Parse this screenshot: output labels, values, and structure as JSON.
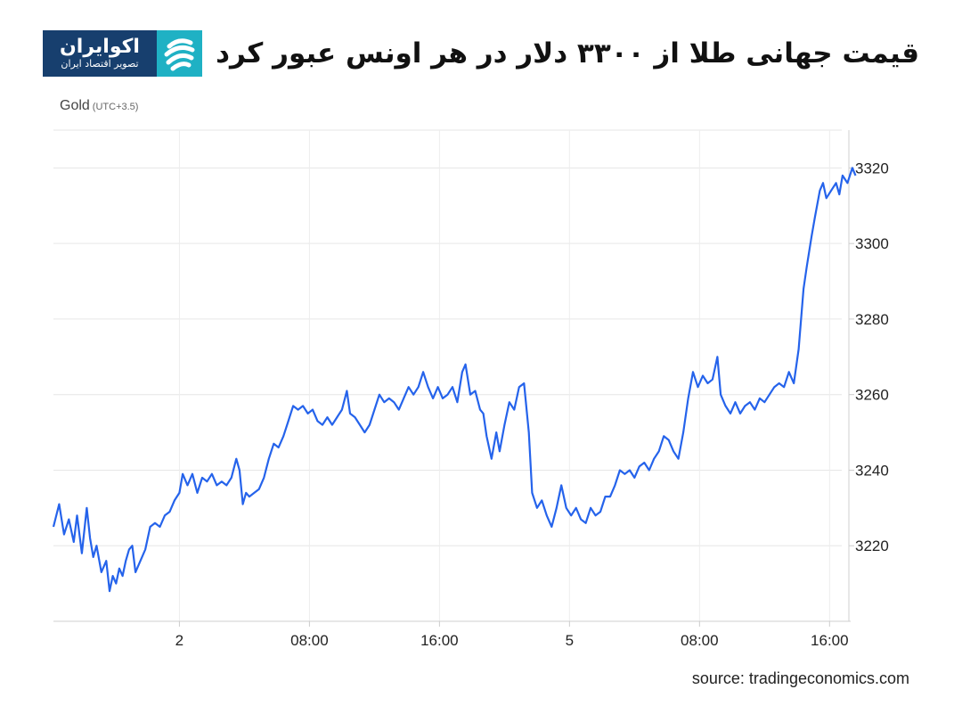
{
  "header": {
    "headline": "قیمت جهانی طلا از ۳۳۰۰ دلار در هر اونس عبور کرد",
    "logo": {
      "main": "اکوایران",
      "sub": "تصویر اقتصاد ایران",
      "colors": {
        "dark": "#173f6e",
        "accent": "#1fb1c4"
      }
    }
  },
  "source_text": "source: tradingeconomics.com",
  "chart_data": {
    "type": "line",
    "series_label": "Gold",
    "timezone_label": "(UTC+3.5)",
    "x_ticks": [
      "2",
      "08:00",
      "16:00",
      "5",
      "08:00",
      "16:00"
    ],
    "x_tick_hours": [
      4.5,
      12.5,
      20.5,
      28.5,
      36.5,
      44.5
    ],
    "x_range_hours": [
      -3.25,
      45.25
    ],
    "ylim": [
      3200,
      3330
    ],
    "y_ticks": [
      3220,
      3240,
      3260,
      3280,
      3300,
      3320
    ],
    "grid": true,
    "line_color": "#2563eb",
    "series": [
      {
        "points": [
          [
            -3.25,
            3225
          ],
          [
            -2.9,
            3231
          ],
          [
            -2.6,
            3223
          ],
          [
            -2.3,
            3227
          ],
          [
            -2.0,
            3221
          ],
          [
            -1.8,
            3228
          ],
          [
            -1.5,
            3218
          ],
          [
            -1.2,
            3230
          ],
          [
            -1.0,
            3222
          ],
          [
            -0.8,
            3217
          ],
          [
            -0.6,
            3220
          ],
          [
            -0.3,
            3213
          ],
          [
            0.0,
            3216
          ],
          [
            0.2,
            3208
          ],
          [
            0.4,
            3212
          ],
          [
            0.6,
            3210
          ],
          [
            0.8,
            3214
          ],
          [
            1.0,
            3212
          ],
          [
            1.2,
            3216
          ],
          [
            1.4,
            3219
          ],
          [
            1.6,
            3220
          ],
          [
            1.8,
            3213
          ],
          [
            2.1,
            3216
          ],
          [
            2.4,
            3219
          ],
          [
            2.7,
            3225
          ],
          [
            3.0,
            3226
          ],
          [
            3.3,
            3225
          ],
          [
            3.6,
            3228
          ],
          [
            3.9,
            3229
          ],
          [
            4.2,
            3232
          ],
          [
            4.5,
            3234
          ],
          [
            4.7,
            3239
          ],
          [
            5.0,
            3236
          ],
          [
            5.3,
            3239
          ],
          [
            5.6,
            3234
          ],
          [
            5.9,
            3238
          ],
          [
            6.2,
            3237
          ],
          [
            6.5,
            3239
          ],
          [
            6.8,
            3236
          ],
          [
            7.1,
            3237
          ],
          [
            7.4,
            3236
          ],
          [
            7.7,
            3238
          ],
          [
            8.0,
            3243
          ],
          [
            8.2,
            3240
          ],
          [
            8.4,
            3231
          ],
          [
            8.6,
            3234
          ],
          [
            8.8,
            3233
          ],
          [
            9.1,
            3234
          ],
          [
            9.4,
            3235
          ],
          [
            9.7,
            3238
          ],
          [
            10.0,
            3243
          ],
          [
            10.3,
            3247
          ],
          [
            10.6,
            3246
          ],
          [
            10.9,
            3249
          ],
          [
            11.2,
            3253
          ],
          [
            11.5,
            3257
          ],
          [
            11.8,
            3256
          ],
          [
            12.1,
            3257
          ],
          [
            12.4,
            3255
          ],
          [
            12.7,
            3256
          ],
          [
            13.0,
            3253
          ],
          [
            13.3,
            3252
          ],
          [
            13.6,
            3254
          ],
          [
            13.9,
            3252
          ],
          [
            14.2,
            3254
          ],
          [
            14.5,
            3256
          ],
          [
            14.8,
            3261
          ],
          [
            15.0,
            3255
          ],
          [
            15.3,
            3254
          ],
          [
            15.6,
            3252
          ],
          [
            15.9,
            3250
          ],
          [
            16.2,
            3252
          ],
          [
            16.5,
            3256
          ],
          [
            16.8,
            3260
          ],
          [
            17.1,
            3258
          ],
          [
            17.4,
            3259
          ],
          [
            17.7,
            3258
          ],
          [
            18.0,
            3256
          ],
          [
            18.3,
            3259
          ],
          [
            18.6,
            3262
          ],
          [
            18.9,
            3260
          ],
          [
            19.2,
            3262
          ],
          [
            19.5,
            3266
          ],
          [
            19.8,
            3262
          ],
          [
            20.1,
            3259
          ],
          [
            20.4,
            3262
          ],
          [
            20.7,
            3259
          ],
          [
            21.0,
            3260
          ],
          [
            21.3,
            3262
          ],
          [
            21.6,
            3258
          ],
          [
            21.9,
            3266
          ],
          [
            22.1,
            3268
          ],
          [
            22.4,
            3260
          ],
          [
            22.7,
            3261
          ],
          [
            23.0,
            3256
          ],
          [
            23.2,
            3255
          ],
          [
            23.4,
            3249
          ],
          [
            23.7,
            3243
          ],
          [
            24.0,
            3250
          ],
          [
            24.2,
            3245
          ],
          [
            24.5,
            3252
          ],
          [
            24.8,
            3258
          ],
          [
            25.1,
            3256
          ],
          [
            25.4,
            3262
          ],
          [
            25.7,
            3263
          ],
          [
            26.0,
            3250
          ],
          [
            26.2,
            3234
          ],
          [
            26.5,
            3230
          ],
          [
            26.8,
            3232
          ],
          [
            27.1,
            3228
          ],
          [
            27.4,
            3225
          ],
          [
            27.7,
            3230
          ],
          [
            28.0,
            3236
          ],
          [
            28.3,
            3230
          ],
          [
            28.6,
            3228
          ],
          [
            28.9,
            3230
          ],
          [
            29.2,
            3227
          ],
          [
            29.5,
            3226
          ],
          [
            29.8,
            3230
          ],
          [
            30.1,
            3228
          ],
          [
            30.4,
            3229
          ],
          [
            30.7,
            3233
          ],
          [
            31.0,
            3233
          ],
          [
            31.3,
            3236
          ],
          [
            31.6,
            3240
          ],
          [
            31.9,
            3239
          ],
          [
            32.2,
            3240
          ],
          [
            32.5,
            3238
          ],
          [
            32.8,
            3241
          ],
          [
            33.1,
            3242
          ],
          [
            33.4,
            3240
          ],
          [
            33.7,
            3243
          ],
          [
            34.0,
            3245
          ],
          [
            34.3,
            3249
          ],
          [
            34.6,
            3248
          ],
          [
            34.9,
            3245
          ],
          [
            35.2,
            3243
          ],
          [
            35.5,
            3250
          ],
          [
            35.8,
            3259
          ],
          [
            36.1,
            3266
          ],
          [
            36.4,
            3262
          ],
          [
            36.7,
            3265
          ],
          [
            37.0,
            3263
          ],
          [
            37.3,
            3264
          ],
          [
            37.6,
            3270
          ],
          [
            37.8,
            3260
          ],
          [
            38.1,
            3257
          ],
          [
            38.4,
            3255
          ],
          [
            38.7,
            3258
          ],
          [
            39.0,
            3255
          ],
          [
            39.3,
            3257
          ],
          [
            39.6,
            3258
          ],
          [
            39.9,
            3256
          ],
          [
            40.2,
            3259
          ],
          [
            40.5,
            3258
          ],
          [
            40.8,
            3260
          ],
          [
            41.1,
            3262
          ],
          [
            41.4,
            3263
          ],
          [
            41.7,
            3262
          ],
          [
            42.0,
            3266
          ],
          [
            42.3,
            3263
          ],
          [
            42.6,
            3272
          ],
          [
            42.9,
            3288
          ],
          [
            43.1,
            3294
          ],
          [
            43.4,
            3302
          ],
          [
            43.6,
            3307
          ],
          [
            43.9,
            3314
          ],
          [
            44.1,
            3316
          ],
          [
            44.3,
            3312
          ],
          [
            44.6,
            3314
          ],
          [
            44.9,
            3316
          ],
          [
            45.1,
            3313
          ],
          [
            45.3,
            3318
          ],
          [
            45.6,
            3316
          ],
          [
            45.9,
            3320
          ],
          [
            46.1,
            3318
          ]
        ]
      }
    ]
  }
}
